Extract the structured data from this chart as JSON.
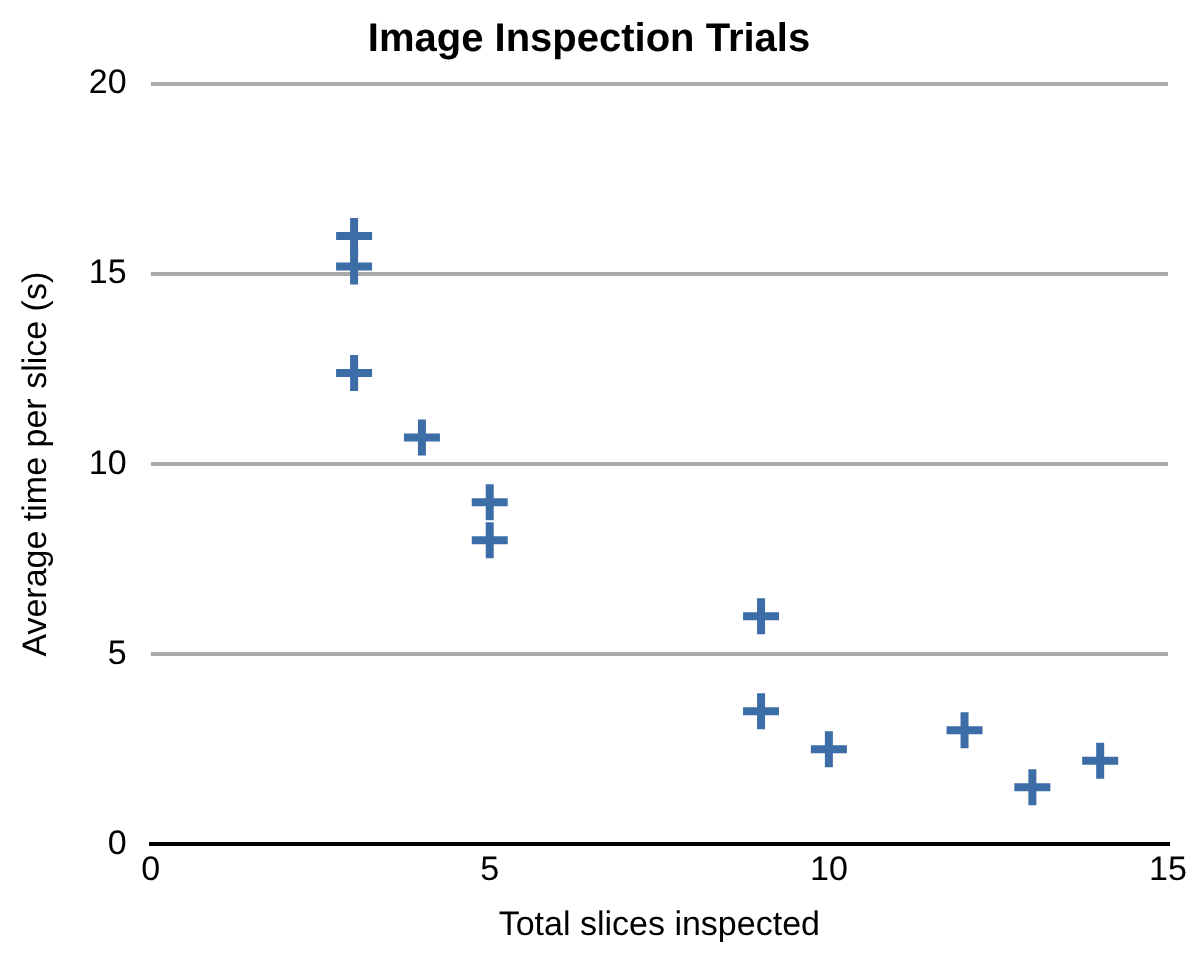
{
  "chart_data": {
    "type": "scatter",
    "title": "Image Inspection Trials",
    "xlabel": "Total slices inspected",
    "ylabel": "Average time per slice (s)",
    "x": [
      3,
      3,
      3,
      4,
      5,
      5,
      9,
      9,
      10,
      12,
      13,
      14
    ],
    "values": [
      16,
      15.2,
      12.4,
      10.7,
      9,
      8,
      6,
      3.5,
      2.5,
      3,
      1.5,
      2.2
    ],
    "color": "#3d6da6",
    "marker": "cross",
    "xlim": [
      0,
      15
    ],
    "xticks": [
      0,
      5,
      10,
      15
    ],
    "ylim": [
      0,
      20
    ],
    "yticks": [
      0,
      5,
      10,
      15,
      20
    ],
    "grid": "y",
    "legend": false
  }
}
